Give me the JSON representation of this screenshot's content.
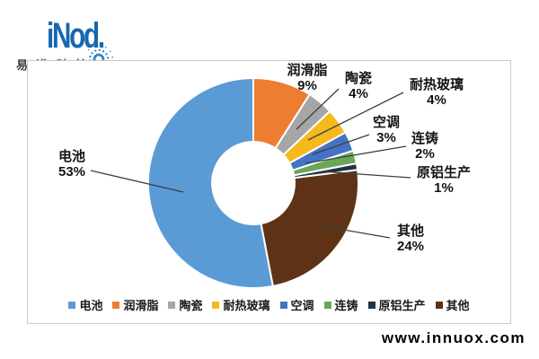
{
  "brand": {
    "logo_text": "iNod.",
    "logo_sub": "易诺科技",
    "logo_color": "#1568af",
    "sparkle_color": "#2e82c6"
  },
  "footer": {
    "website": "www.innuox.com"
  },
  "chart_data": {
    "type": "pie",
    "subtype": "donut",
    "title": "",
    "unit": "%",
    "legend_position": "bottom",
    "series": [
      {
        "name": "电池",
        "value": 53,
        "color": "#5B9BD5"
      },
      {
        "name": "润滑脂",
        "value": 9,
        "color": "#ED7D31"
      },
      {
        "name": "陶瓷",
        "value": 4,
        "color": "#A6A6A6"
      },
      {
        "name": "耐热玻璃",
        "value": 4,
        "color": "#F5B91E"
      },
      {
        "name": "空调",
        "value": 3,
        "color": "#4472C4"
      },
      {
        "name": "连铸",
        "value": 2,
        "color": "#6AA758"
      },
      {
        "name": "原铝生产",
        "value": 1,
        "color": "#1F3244"
      },
      {
        "name": "其他",
        "value": 24,
        "color": "#5E3315"
      }
    ]
  }
}
